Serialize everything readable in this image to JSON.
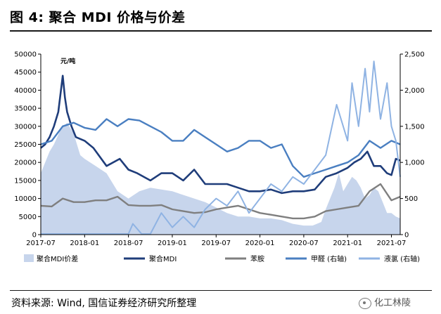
{
  "figure": {
    "title": "图 4:  聚合 MDI 价格与价差",
    "source": "资料来源: Wind, 国信证券经济研究所整理",
    "watermark": "化工林陵"
  },
  "chart_data": {
    "type": "line",
    "unit_label": "元/吨",
    "x_ticks": [
      "2017-07",
      "2018-01",
      "2018-07",
      "2019-01",
      "2019-07",
      "2020-01",
      "2020-07",
      "2021-01",
      "2021-07"
    ],
    "y_left": {
      "range": [
        0,
        50000
      ],
      "ticks": [
        "0",
        "5000",
        "10000",
        "15000",
        "20000",
        "25000",
        "30000",
        "35000",
        "40000",
        "45000",
        "50000"
      ]
    },
    "y_right": {
      "range": [
        0,
        2500
      ],
      "ticks": [
        "0",
        "500",
        "1,000",
        "1,500",
        "2,000",
        "2,500"
      ]
    },
    "colors": {
      "spread": "#c7d5ec",
      "mdi": "#1f3d7a",
      "aniline": "#7f7f7f",
      "formaldehyde": "#4a7fc1",
      "chlorine": "#8fb3e3"
    },
    "legend": [
      {
        "key": "spread",
        "label": "聚合MDI价差"
      },
      {
        "key": "mdi",
        "label": "聚合MDI"
      },
      {
        "key": "aniline",
        "label": "苯胺"
      },
      {
        "key": "formaldehyde",
        "label": "甲醛 (右轴)"
      },
      {
        "key": "chlorine",
        "label": "液氯 (右轴)"
      }
    ],
    "series": [
      {
        "key": "spread",
        "name": "聚合MDI价差",
        "axis": "left",
        "kind": "area",
        "x": [
          0,
          0.1,
          0.2,
          0.3,
          0.45,
          0.6,
          0.75,
          0.9,
          1,
          1.25,
          1.5,
          1.75,
          2,
          2.25,
          2.5,
          2.75,
          3,
          3.25,
          3.5,
          3.75,
          4,
          4.25,
          4.5,
          4.75,
          5,
          5.25,
          5.5,
          5.75,
          6,
          6.1,
          6.2,
          6.3,
          6.4,
          6.5,
          6.6,
          6.7,
          6.8,
          6.9,
          7,
          7.1,
          7.2,
          7.3,
          7.4,
          7.5,
          7.6,
          7.7,
          7.8,
          7.9,
          8,
          8.1,
          8.2
        ],
        "values": [
          17000,
          20000,
          23000,
          25000,
          29000,
          31000,
          28000,
          22000,
          21000,
          19000,
          17000,
          12000,
          10000,
          12000,
          13000,
          12500,
          12000,
          11000,
          10000,
          9000,
          7500,
          6000,
          5000,
          5000,
          4500,
          4500,
          4000,
          3000,
          2500,
          2500,
          2500,
          3000,
          3500,
          7000,
          10000,
          13000,
          17000,
          12000,
          14000,
          16000,
          15000,
          13000,
          10000,
          11000,
          13000,
          12000,
          9000,
          6000,
          6000,
          5000,
          4500
        ]
      },
      {
        "key": "mdi",
        "name": "聚合MDI",
        "axis": "left",
        "kind": "line",
        "x": [
          0,
          0.1,
          0.2,
          0.3,
          0.4,
          0.5,
          0.55,
          0.6,
          0.7,
          0.8,
          1,
          1.2,
          1.5,
          1.8,
          2,
          2.2,
          2.5,
          2.75,
          3,
          3.25,
          3.5,
          3.75,
          4,
          4.25,
          4.5,
          4.75,
          5,
          5.25,
          5.5,
          5.75,
          6,
          6.25,
          6.5,
          6.75,
          7,
          7.15,
          7.3,
          7.45,
          7.6,
          7.75,
          7.9,
          8,
          8.1,
          8.2
        ],
        "values": [
          24000,
          25000,
          27000,
          30000,
          34000,
          44000,
          38000,
          34000,
          30000,
          27000,
          26000,
          24000,
          19000,
          21000,
          18000,
          17000,
          15000,
          17000,
          17000,
          15000,
          18000,
          14000,
          14000,
          14000,
          13000,
          12000,
          12000,
          12500,
          11500,
          12000,
          12000,
          12500,
          16000,
          17000,
          18500,
          20000,
          21000,
          23000,
          19000,
          19000,
          17000,
          16500,
          21000,
          20500
        ]
      },
      {
        "key": "aniline",
        "name": "苯胺",
        "axis": "left",
        "kind": "line",
        "x": [
          0,
          0.25,
          0.5,
          0.75,
          1,
          1.25,
          1.5,
          1.75,
          2,
          2.25,
          2.5,
          2.75,
          3,
          3.25,
          3.5,
          3.75,
          4,
          4.25,
          4.5,
          4.75,
          5,
          5.25,
          5.5,
          5.75,
          6,
          6.25,
          6.5,
          6.75,
          7,
          7.25,
          7.5,
          7.75,
          8,
          8.2
        ],
        "values": [
          8000,
          7800,
          10000,
          9000,
          9000,
          9500,
          9500,
          10500,
          8200,
          8000,
          8000,
          8200,
          7000,
          6500,
          6000,
          6200,
          7000,
          7500,
          8000,
          7000,
          6000,
          5500,
          5000,
          4500,
          4500,
          5000,
          6500,
          7000,
          7500,
          8000,
          12000,
          14000,
          9500,
          10500
        ]
      },
      {
        "key": "formaldehyde",
        "name": "甲醛 (右轴)",
        "axis": "right",
        "kind": "line",
        "x": [
          0,
          0.25,
          0.5,
          0.75,
          1,
          1.25,
          1.5,
          1.75,
          2,
          2.25,
          2.5,
          2.75,
          3,
          3.25,
          3.5,
          3.75,
          4,
          4.25,
          4.5,
          4.75,
          5,
          5.25,
          5.5,
          5.75,
          6,
          6.25,
          6.5,
          6.75,
          7,
          7.25,
          7.5,
          7.75,
          8,
          8.2
        ],
        "values": [
          1250,
          1300,
          1500,
          1550,
          1480,
          1450,
          1600,
          1500,
          1600,
          1580,
          1500,
          1420,
          1300,
          1300,
          1450,
          1350,
          1250,
          1150,
          1200,
          1300,
          1300,
          1200,
          1250,
          950,
          800,
          850,
          900,
          950,
          1000,
          1100,
          1300,
          1200,
          1300,
          1250
        ]
      },
      {
        "key": "chlorine",
        "name": "液氯 (右轴)",
        "axis": "right",
        "kind": "line",
        "x": [
          0,
          0.5,
          1,
          1.5,
          2,
          2.1,
          2.3,
          2.5,
          2.75,
          3,
          3.25,
          3.5,
          3.75,
          4,
          4.25,
          4.5,
          4.75,
          5,
          5.25,
          5.5,
          5.75,
          6,
          6.25,
          6.5,
          6.75,
          7,
          7.1,
          7.25,
          7.4,
          7.5,
          7.6,
          7.75,
          7.9,
          8,
          8.1,
          8.2
        ],
        "values": [
          10,
          10,
          10,
          10,
          10,
          150,
          10,
          10,
          300,
          100,
          250,
          100,
          350,
          500,
          400,
          600,
          300,
          500,
          700,
          600,
          800,
          700,
          900,
          1100,
          1800,
          1300,
          2100,
          1500,
          2300,
          1700,
          2400,
          1600,
          2100,
          1500,
          1300,
          800
        ]
      }
    ]
  }
}
